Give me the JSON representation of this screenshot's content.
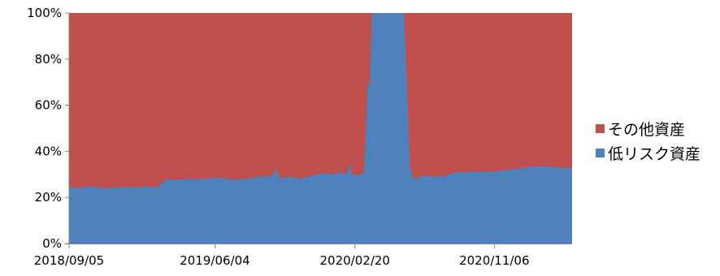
{
  "chart_data": {
    "type": "area",
    "stacked": true,
    "normalized": true,
    "title": "",
    "xlabel": "",
    "ylabel": "",
    "ylim": [
      0,
      100
    ],
    "y_ticks": [
      "0%",
      "20%",
      "40%",
      "60%",
      "80%",
      "100%"
    ],
    "x_ticks": [
      "2018/09/05",
      "2019/06/04",
      "2020/02/20",
      "2020/11/06"
    ],
    "x_range": [
      "2018/09/05",
      "2021/03/31"
    ],
    "grid": false,
    "legend_position": "right",
    "series": [
      {
        "name": "低リスク資産",
        "color": "#4F81BD",
        "points": [
          [
            "2018/09/05",
            24.5
          ],
          [
            "2018/09/25",
            24.2
          ],
          [
            "2018/10/15",
            24.8
          ],
          [
            "2018/11/05",
            24.0
          ],
          [
            "2018/11/25",
            24.3
          ],
          [
            "2018/12/20",
            24.6
          ],
          [
            "2019/01/10",
            24.4
          ],
          [
            "2019/01/30",
            24.8
          ],
          [
            "2019/02/15",
            24.3
          ],
          [
            "2019/02/25",
            26.0
          ],
          [
            "2019/03/05",
            27.8
          ],
          [
            "2019/03/25",
            27.6
          ],
          [
            "2019/04/15",
            28.0
          ],
          [
            "2019/05/05",
            27.9
          ],
          [
            "2019/05/25",
            28.3
          ],
          [
            "2019/06/15",
            28.6
          ],
          [
            "2019/07/05",
            27.7
          ],
          [
            "2019/07/25",
            27.9
          ],
          [
            "2019/08/15",
            28.4
          ],
          [
            "2019/09/01",
            29.4
          ],
          [
            "2019/09/10",
            28.8
          ],
          [
            "2019/09/20",
            29.8
          ],
          [
            "2019/09/26",
            32.5
          ],
          [
            "2019/10/02",
            28.5
          ],
          [
            "2019/10/20",
            28.9
          ],
          [
            "2019/11/10",
            28.2
          ],
          [
            "2019/11/30",
            29.3
          ],
          [
            "2019/12/20",
            30.4
          ],
          [
            "2020/01/10",
            30.1
          ],
          [
            "2020/01/25",
            30.8
          ],
          [
            "2020/02/05",
            30.4
          ],
          [
            "2020/02/12",
            35.0
          ],
          [
            "2020/02/14",
            29.5
          ],
          [
            "2020/02/20",
            29.6
          ],
          [
            "2020/03/01",
            30.0
          ],
          [
            "2020/03/08",
            30.3
          ],
          [
            "2020/03/15",
            68.0
          ],
          [
            "2020/03/19",
            70.0
          ],
          [
            "2020/03/23",
            99.8
          ],
          [
            "2020/04/10",
            100.0
          ],
          [
            "2020/05/01",
            100.0
          ],
          [
            "2020/05/22",
            99.9
          ],
          [
            "2020/06/02",
            33.0
          ],
          [
            "2020/06/10",
            27.5
          ],
          [
            "2020/06/25",
            29.6
          ],
          [
            "2020/07/15",
            29.1
          ],
          [
            "2020/08/05",
            29.2
          ],
          [
            "2020/08/25",
            30.9
          ],
          [
            "2020/09/15",
            31.0
          ],
          [
            "2020/10/05",
            31.2
          ],
          [
            "2020/10/25",
            31.1
          ],
          [
            "2020/11/15",
            31.6
          ],
          [
            "2020/12/05",
            31.9
          ],
          [
            "2020/12/25",
            32.6
          ],
          [
            "2021/01/15",
            33.3
          ],
          [
            "2021/02/05",
            33.6
          ],
          [
            "2021/02/25",
            33.2
          ],
          [
            "2021/03/15",
            32.7
          ],
          [
            "2021/03/31",
            32.9
          ]
        ]
      },
      {
        "name": "その他資産",
        "color": "#C0504D",
        "note_values": "remainder to 100%"
      }
    ]
  }
}
